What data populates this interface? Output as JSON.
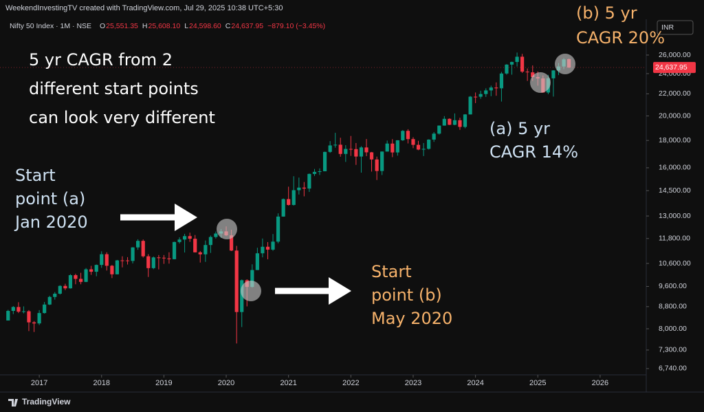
{
  "chart_data": {
    "type": "candlestick",
    "credit": "WeekendInvestingTV created with TradingView.com, Jul 29, 2025 10:38 UTC+5:30",
    "title": "Nifty 50 Index · 1M · NSE",
    "legend": [
      {
        "key": "O",
        "value": "25,551.35"
      },
      {
        "key": "H",
        "value": "25,608.10"
      },
      {
        "key": "L",
        "value": "24,598.60"
      },
      {
        "key": "C",
        "value": "24,637.95"
      }
    ],
    "change": "−879.10 (−3.45%)",
    "currency": "INR",
    "last_price_label": "24,637.95",
    "brand": "TradingView",
    "up_color": "#089981",
    "down_color": "#f23645",
    "log_scale": true,
    "grid": false,
    "xlim": [
      2016.37,
      2026.74
    ],
    "xticks": [
      2017,
      2018,
      2019,
      2020,
      2021,
      2022,
      2023,
      2024,
      2025,
      2026
    ],
    "ylim": [
      6560,
      30330
    ],
    "yticks": [
      {
        "value": 6740,
        "label": "6,740.00"
      },
      {
        "value": 7300,
        "label": "7,300.00"
      },
      {
        "value": 8000,
        "label": "8,000.00"
      },
      {
        "value": 8800,
        "label": "8,800.00"
      },
      {
        "value": 9600,
        "label": "9,600.00"
      },
      {
        "value": 10600,
        "label": "10,600.00"
      },
      {
        "value": 11800,
        "label": "11,800.00"
      },
      {
        "value": 13000,
        "label": "13,000.00"
      },
      {
        "value": 14500,
        "label": "14,500.00"
      },
      {
        "value": 16000,
        "label": "16,000.00"
      },
      {
        "value": 18000,
        "label": "18,000.00"
      },
      {
        "value": 20000,
        "label": "20,000.00"
      },
      {
        "value": 22000,
        "label": "22,000.00"
      },
      {
        "value": 24000,
        "label": "24,000.00"
      },
      {
        "value": 26000,
        "label": "26,000.00"
      }
    ],
    "x": [
      2016.5,
      2016.583,
      2016.667,
      2016.75,
      2016.833,
      2016.917,
      2017,
      2017.083,
      2017.167,
      2017.25,
      2017.333,
      2017.417,
      2017.5,
      2017.583,
      2017.667,
      2017.75,
      2017.833,
      2017.917,
      2018,
      2018.083,
      2018.167,
      2018.25,
      2018.333,
      2018.417,
      2018.5,
      2018.583,
      2018.667,
      2018.75,
      2018.833,
      2018.917,
      2019,
      2019.083,
      2019.167,
      2019.25,
      2019.333,
      2019.417,
      2019.5,
      2019.583,
      2019.667,
      2019.75,
      2019.833,
      2019.917,
      2020,
      2020.083,
      2020.167,
      2020.25,
      2020.333,
      2020.417,
      2020.5,
      2020.583,
      2020.667,
      2020.75,
      2020.833,
      2020.917,
      2021,
      2021.083,
      2021.167,
      2021.25,
      2021.333,
      2021.417,
      2021.5,
      2021.583,
      2021.667,
      2021.75,
      2021.833,
      2021.917,
      2022,
      2022.083,
      2022.167,
      2022.25,
      2022.333,
      2022.417,
      2022.5,
      2022.583,
      2022.667,
      2022.75,
      2022.833,
      2022.917,
      2023,
      2023.083,
      2023.167,
      2023.25,
      2023.333,
      2023.417,
      2023.5,
      2023.583,
      2023.667,
      2023.75,
      2023.833,
      2023.917,
      2024,
      2024.083,
      2024.167,
      2024.25,
      2024.333,
      2024.417,
      2024.5,
      2024.583,
      2024.667,
      2024.75,
      2024.833,
      2024.917,
      2025,
      2025.083,
      2025.167,
      2025.25,
      2025.333,
      2025.417,
      2025.5
    ],
    "open": [
      8290,
      8640,
      8786,
      8611,
      8626,
      8224,
      8186,
      8561,
      8880,
      9174,
      9304,
      9621,
      9521,
      10077,
      9918,
      9789,
      10335,
      10227,
      10531,
      11028,
      10493,
      10114,
      10739,
      10736,
      10714,
      11357,
      11681,
      10930,
      10387,
      10877,
      10863,
      10831,
      10793,
      11624,
      11748,
      11923,
      11789,
      11118,
      11023,
      11474,
      11877,
      12056,
      12168,
      11962,
      11202,
      8598,
      9860,
      9580,
      10302,
      11073,
      11388,
      11248,
      11642,
      12969,
      13982,
      13635,
      14529,
      14691,
      14631,
      15583,
      15722,
      15763,
      17132,
      17618,
      17672,
      16983,
      17354,
      17340,
      16794,
      17465,
      17103,
      16585,
      15780,
      17158,
      17759,
      17094,
      18012,
      18758,
      18105,
      17662,
      17304,
      17360,
      18065,
      18534,
      19189,
      19754,
      19254,
      19638,
      19080,
      20133,
      21731,
      21726,
      21983,
      22327,
      22605,
      22531,
      24011,
      24951,
      25236,
      25811,
      24205,
      24131,
      23645,
      23508,
      22125,
      23519,
      24334,
      24751,
      25551.35
    ],
    "high": [
      8680,
      8820,
      8970,
      8810,
      8670,
      8270,
      8670,
      8980,
      9220,
      9370,
      9650,
      9710,
      10120,
      10140,
      10180,
      10390,
      10490,
      10550,
      11170,
      11120,
      10530,
      10760,
      10930,
      10890,
      11370,
      11760,
      11750,
      11030,
      10920,
      10990,
      10990,
      11120,
      11640,
      11860,
      12040,
      12100,
      11980,
      11180,
      11700,
      11950,
      12160,
      12290,
      12430,
      12250,
      11430,
      9890,
      9900,
      10560,
      11340,
      11800,
      11620,
      12030,
      13150,
      14020,
      14750,
      15430,
      15340,
      15050,
      15610,
      15920,
      15960,
      17150,
      17950,
      18600,
      18210,
      17640,
      18350,
      17800,
      17560,
      18110,
      17130,
      16790,
      17170,
      17990,
      18100,
      18020,
      18820,
      18890,
      18250,
      17970,
      17800,
      18090,
      18660,
      19200,
      19990,
      19800,
      20220,
      19850,
      20160,
      21800,
      22130,
      22300,
      22530,
      22790,
      23110,
      24180,
      25000,
      25270,
      26280,
      26130,
      24540,
      24860,
      24230,
      23810,
      23870,
      24360,
      25120,
      25670,
      25608.1
    ],
    "low": [
      8290,
      8520,
      8560,
      8550,
      7920,
      7890,
      8130,
      8540,
      8860,
      9070,
      9270,
      9450,
      9510,
      9690,
      9690,
      9780,
      10090,
      10030,
      10400,
      10280,
      9950,
      10110,
      10420,
      10550,
      10600,
      11240,
      10870,
      10000,
      10340,
      10330,
      10580,
      10590,
      10790,
      11550,
      11110,
      11630,
      11110,
      10640,
      10670,
      11090,
      11800,
      11830,
      11930,
      11180,
      7510,
      8060,
      8810,
      9550,
      10300,
      10880,
      10790,
      11190,
      11560,
      12960,
      13600,
      13600,
      14260,
      14150,
      14420,
      15450,
      15510,
      15760,
      17060,
      17450,
      16780,
      16410,
      16840,
      16200,
      15670,
      16820,
      15740,
      15180,
      15510,
      17150,
      16750,
      16860,
      17960,
      17770,
      17410,
      17260,
      16830,
      17310,
      17890,
      18460,
      19180,
      19230,
      19220,
      18840,
      18970,
      20130,
      21140,
      21530,
      21710,
      21780,
      21820,
      21280,
      23890,
      23890,
      24750,
      24070,
      23260,
      23260,
      22790,
      22100,
      21960,
      21740,
      23850,
      24470,
      24598.6
    ],
    "close": [
      8640,
      8786,
      8611,
      8626,
      8224,
      8186,
      8561,
      8880,
      9174,
      9304,
      9621,
      9521,
      10077,
      9918,
      9789,
      10335,
      10227,
      10531,
      11028,
      10493,
      10114,
      10739,
      10736,
      10714,
      11357,
      11681,
      10930,
      10387,
      10877,
      10863,
      10831,
      10793,
      11624,
      11748,
      11923,
      11789,
      11118,
      11023,
      11474,
      11877,
      12056,
      12168,
      11962,
      11202,
      8598,
      9860,
      9580,
      10302,
      11073,
      11388,
      11248,
      11642,
      12969,
      13982,
      13635,
      14529,
      14691,
      14631,
      15583,
      15722,
      15763,
      17132,
      17618,
      17672,
      16983,
      17354,
      17340,
      16794,
      17465,
      17103,
      16585,
      15780,
      17158,
      17759,
      17094,
      18012,
      18758,
      18105,
      17662,
      17304,
      17360,
      18065,
      18534,
      19189,
      19754,
      19254,
      19638,
      19080,
      20133,
      21731,
      21726,
      21983,
      22327,
      22605,
      22531,
      24011,
      24951,
      25236,
      25811,
      24205,
      24131,
      23645,
      23508,
      22125,
      23519,
      24334,
      24751,
      25517,
      24637.95
    ],
    "annotations": [
      {
        "lines": [
          "5 yr CAGR from 2",
          "different start points",
          "can look very different"
        ],
        "color": "#ffffff"
      },
      {
        "lines": [
          "Start",
          "point (a)",
          "Jan 2020"
        ],
        "color": "#cfe2f3"
      },
      {
        "lines": [
          "Start",
          "point (b)",
          "May 2020"
        ],
        "color": "#f6b26b"
      },
      {
        "lines": [
          "(a) 5 yr",
          "CAGR 14%"
        ],
        "color": "#cfe2f3"
      },
      {
        "lines": [
          "(b) 5 yr",
          "CAGR 20%"
        ],
        "color": "#f6b26b"
      }
    ]
  }
}
